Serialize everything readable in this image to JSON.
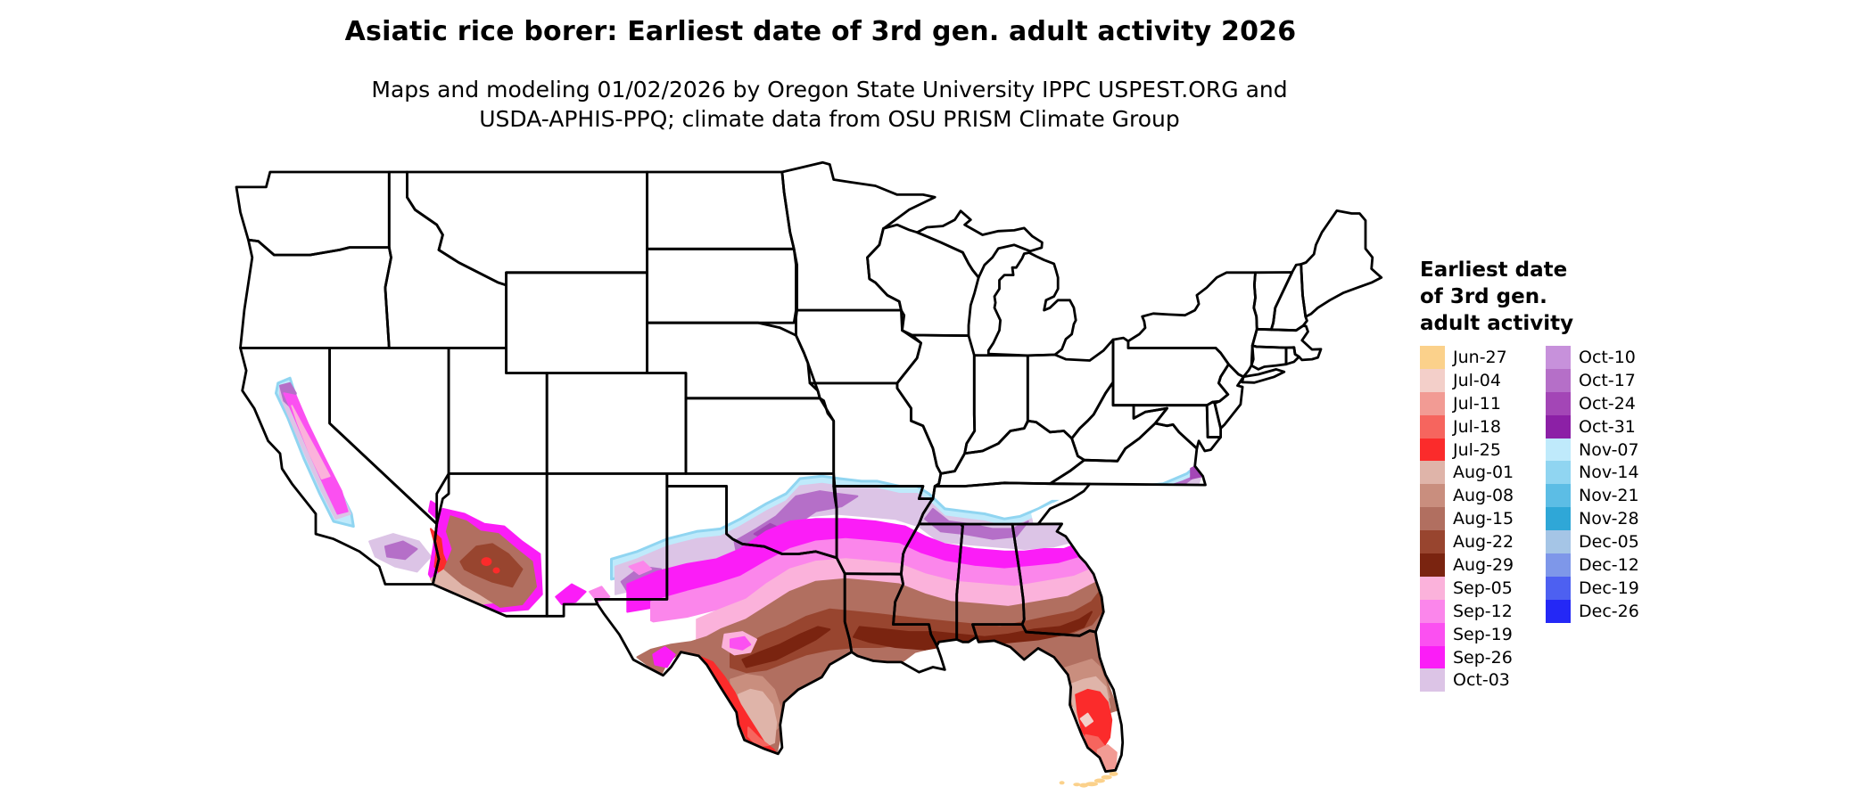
{
  "header": {
    "title": "Asiatic rice borer: Earliest date of 3rd gen. adult activity 2026",
    "subtitle_line1": "Maps and modeling 01/02/2026 by Oregon State University IPPC USPEST.ORG and",
    "subtitle_line2": "USDA-APHIS-PPQ; climate data from OSU PRISM Climate Group"
  },
  "legend": {
    "title_lines": [
      "Earliest date",
      "of 3rd gen.",
      "adult activity"
    ],
    "column_split": 15,
    "entries": [
      {
        "label": "Jun-27",
        "color": "#FBD18B"
      },
      {
        "label": "Jul-04",
        "color": "#F3CFC9"
      },
      {
        "label": "Jul-11",
        "color": "#F29B94"
      },
      {
        "label": "Jul-18",
        "color": "#F6655E"
      },
      {
        "label": "Jul-25",
        "color": "#FB2B2B"
      },
      {
        "label": "Aug-01",
        "color": "#DFB4A9"
      },
      {
        "label": "Aug-08",
        "color": "#C98E7E"
      },
      {
        "label": "Aug-15",
        "color": "#B16F60"
      },
      {
        "label": "Aug-22",
        "color": "#98452F"
      },
      {
        "label": "Aug-29",
        "color": "#7A2410"
      },
      {
        "label": "Sep-05",
        "color": "#FBB2DB"
      },
      {
        "label": "Sep-12",
        "color": "#FB86EB"
      },
      {
        "label": "Sep-19",
        "color": "#FB50F1"
      },
      {
        "label": "Sep-26",
        "color": "#FB1DF7"
      },
      {
        "label": "Oct-03",
        "color": "#DCC4E6"
      },
      {
        "label": "Oct-10",
        "color": "#C791DB"
      },
      {
        "label": "Oct-17",
        "color": "#B56FC8"
      },
      {
        "label": "Oct-24",
        "color": "#A346B6"
      },
      {
        "label": "Oct-31",
        "color": "#8C20A6"
      },
      {
        "label": "Nov-07",
        "color": "#BFEAFB"
      },
      {
        "label": "Nov-14",
        "color": "#90D5F1"
      },
      {
        "label": "Nov-21",
        "color": "#5CBDE5"
      },
      {
        "label": "Nov-28",
        "color": "#2FA7D7"
      },
      {
        "label": "Dec-05",
        "color": "#A5C5E6"
      },
      {
        "label": "Dec-12",
        "color": "#7E97E9"
      },
      {
        "label": "Dec-19",
        "color": "#4D60F1"
      },
      {
        "label": "Dec-26",
        "color": "#2428F6"
      }
    ]
  },
  "map": {
    "background": "#FFFFFF",
    "border_color": "#000000"
  }
}
